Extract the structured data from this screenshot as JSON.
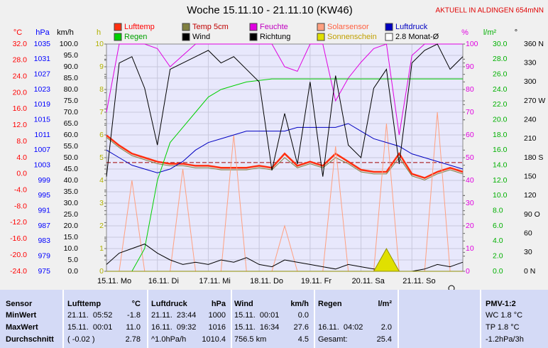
{
  "chart_data": {
    "type": "line",
    "title": "Woche 15.11.10 - 21.11.10 (KW46)",
    "subtitle": "AKTUELL IN ALDINGEN 654mNN",
    "xlim": [
      0,
      7
    ],
    "xticks": [
      {
        "value": 0,
        "label": "15.11. Mo"
      },
      {
        "value": 1,
        "label": "16.11. Di"
      },
      {
        "value": 2,
        "label": "17.11. Mi"
      },
      {
        "value": 3,
        "label": "18.11. Do"
      },
      {
        "value": 4,
        "label": "19.11. Fr"
      },
      {
        "value": 5,
        "label": "20.11. Sa"
      },
      {
        "value": 6,
        "label": "21.11. So"
      }
    ],
    "grid": true,
    "axes": [
      {
        "label": "°C",
        "color": "#ff0000",
        "lim": [
          -24,
          32
        ],
        "ticks": [
          {
            "value": 32,
            "label": "32.0"
          },
          {
            "value": 28,
            "label": "28.0"
          },
          {
            "value": 24,
            "label": "24.0"
          },
          {
            "value": 20,
            "label": "20.0"
          },
          {
            "value": 16,
            "label": "16.0"
          },
          {
            "value": 12,
            "label": "12.0"
          },
          {
            "value": 8,
            "label": "8.0"
          },
          {
            "value": 4,
            "label": "4.0"
          },
          {
            "value": 0,
            "label": "0.0"
          },
          {
            "value": -4,
            "label": "-4.0"
          },
          {
            "value": -8,
            "label": "-8.0"
          },
          {
            "value": -12,
            "label": "-12.0"
          },
          {
            "value": -16,
            "label": "-16.0"
          },
          {
            "value": -20,
            "label": "-20.0"
          },
          {
            "value": -24,
            "label": "-24.0"
          }
        ]
      },
      {
        "label": "hPa",
        "color": "#0000ff",
        "lim": [
          975,
          1035
        ],
        "ticks": [
          1035,
          1031,
          1027,
          1023,
          1019,
          1015,
          1011,
          1007,
          1003,
          999,
          995,
          991,
          987,
          983,
          979,
          975
        ]
      },
      {
        "label": "km/h",
        "color": "#000000",
        "lim": [
          0,
          100
        ],
        "ticks": [
          {
            "value": 100,
            "label": "100.0"
          },
          {
            "value": 95,
            "label": "95.0"
          },
          {
            "value": 90,
            "label": "90.0"
          },
          {
            "value": 85,
            "label": "85.0"
          },
          {
            "value": 80,
            "label": "80.0"
          },
          {
            "value": 75,
            "label": "75.0"
          },
          {
            "value": 70,
            "label": "70.0"
          },
          {
            "value": 65,
            "label": "65.0"
          },
          {
            "value": 60,
            "label": "60.0"
          },
          {
            "value": 55,
            "label": "55.0"
          },
          {
            "value": 50,
            "label": "50.0"
          },
          {
            "value": 45,
            "label": "45.0"
          },
          {
            "value": 40,
            "label": "40.0"
          },
          {
            "value": 35,
            "label": "35.0"
          },
          {
            "value": 30,
            "label": "30.0"
          },
          {
            "value": 25,
            "label": "25.0"
          },
          {
            "value": 20,
            "label": "20.0"
          },
          {
            "value": 15,
            "label": "15.0"
          },
          {
            "value": 10,
            "label": "10.0"
          },
          {
            "value": 5,
            "label": "5.0"
          },
          {
            "value": 0,
            "label": "0.0"
          }
        ]
      },
      {
        "label": "h",
        "color": "#b0b000",
        "lim": [
          0,
          10
        ],
        "ticks": [
          10,
          9,
          8,
          7,
          6,
          5,
          4,
          3,
          2,
          1,
          0
        ]
      },
      {
        "label": "%",
        "color": "#e000e0",
        "lim": [
          0,
          100
        ],
        "ticks": [
          100,
          90,
          80,
          70,
          60,
          50,
          40,
          30,
          20,
          10,
          0
        ]
      },
      {
        "label": "l/m²",
        "color": "#00b000",
        "lim": [
          0,
          30
        ],
        "ticks": [
          {
            "value": 30,
            "label": "30.0"
          },
          {
            "value": 28,
            "label": "28.0"
          },
          {
            "value": 26,
            "label": "26.0"
          },
          {
            "value": 24,
            "label": "24.0"
          },
          {
            "value": 22,
            "label": "22.0"
          },
          {
            "value": 20,
            "label": "20.0"
          },
          {
            "value": 18,
            "label": "18.0"
          },
          {
            "value": 16,
            "label": "16.0"
          },
          {
            "value": 14,
            "label": "14.0"
          },
          {
            "value": 12,
            "label": "12.0"
          },
          {
            "value": 10,
            "label": "10.0"
          },
          {
            "value": 8,
            "label": "8.0"
          },
          {
            "value": 6,
            "label": "6.0"
          },
          {
            "value": 4,
            "label": "4.0"
          },
          {
            "value": 2,
            "label": "2.0"
          },
          {
            "value": 0,
            "label": "0.0"
          }
        ]
      },
      {
        "label": "°",
        "color": "#000000",
        "lim": [
          0,
          360
        ],
        "ticks": [
          {
            "value": 360,
            "label": "360 N"
          },
          330,
          300,
          {
            "value": 270,
            "label": "270 W"
          },
          240,
          210,
          {
            "value": 180,
            "label": "180 S"
          },
          150,
          120,
          {
            "value": 90,
            "label": "90 O"
          },
          60,
          30,
          {
            "value": 0,
            "label": "0 N"
          }
        ]
      }
    ],
    "x": [
      0,
      0.25,
      0.5,
      0.75,
      1,
      1.25,
      1.5,
      1.75,
      2,
      2.25,
      2.5,
      2.75,
      3,
      3.25,
      3.5,
      3.75,
      4,
      4.25,
      4.5,
      4.75,
      5,
      5.25,
      5.5,
      5.75,
      6,
      6.25,
      6.5,
      6.75,
      7
    ],
    "series": [
      {
        "name": "Lufttemp",
        "color": "#ff3010",
        "axis": 0,
        "values": [
          9.5,
          7,
          5,
          4,
          3,
          2.5,
          2.5,
          2,
          2,
          1.5,
          1.5,
          1.5,
          2,
          1.5,
          5,
          2,
          3,
          2,
          5,
          3,
          1,
          0.5,
          0.5,
          5,
          0,
          -1,
          0.5,
          1.5,
          0.5
        ]
      },
      {
        "name": "Temp 5cm",
        "color": "#808040",
        "axis": 0,
        "values": [
          9,
          6.5,
          4.5,
          3.5,
          2.5,
          2,
          2,
          1.5,
          1.5,
          1,
          1,
          1,
          1.5,
          1,
          4,
          1.5,
          2.5,
          1.5,
          4,
          2.5,
          0.5,
          0,
          0,
          4,
          -0.5,
          -1.5,
          0,
          1,
          0
        ]
      },
      {
        "name": "Feuchte",
        "color": "#e000e0",
        "axis": 4,
        "values": [
          70,
          100,
          100,
          100,
          98,
          90,
          95,
          100,
          100,
          100,
          100,
          100,
          100,
          100,
          90,
          88,
          100,
          100,
          75,
          85,
          92,
          98,
          100,
          60,
          95,
          100,
          100,
          100,
          100
        ]
      },
      {
        "name": "Solarsensor",
        "color": "#ffa080",
        "axis": 4,
        "values": [
          0,
          0,
          40,
          0,
          0,
          0,
          45,
          0,
          0,
          0,
          60,
          0,
          0,
          0,
          20,
          0,
          0,
          0,
          55,
          0,
          0,
          0,
          65,
          0,
          0,
          0,
          70,
          0,
          0
        ]
      },
      {
        "name": "Luftdruck",
        "color": "#0000c0",
        "axis": 1,
        "values": [
          1007,
          1005,
          1003,
          1002,
          1001,
          1002,
          1004,
          1007,
          1009,
          1010,
          1011,
          1012,
          1012,
          1012,
          1012,
          1013,
          1013,
          1013,
          1013,
          1014,
          1012,
          1010,
          1009,
          1008,
          1006,
          1005,
          1004,
          1003,
          1002
        ]
      },
      {
        "name": "Regen",
        "color": "#00d000",
        "axis": 5,
        "values": [
          0,
          0,
          0,
          3,
          12,
          17,
          19,
          21,
          23,
          24,
          24.5,
          25,
          25.2,
          25.4,
          25.4,
          25.4,
          25.4,
          25.4,
          25.4,
          25.4,
          25.4,
          25.4,
          25.4,
          25.4,
          25.4,
          25.4,
          25.4,
          25.4,
          25.4
        ]
      },
      {
        "name": "Wind",
        "color": "#000000",
        "axis": 2,
        "values": [
          3,
          8,
          10,
          12,
          8,
          5,
          3,
          4,
          3,
          5,
          4,
          6,
          3,
          2,
          5,
          4,
          3,
          2,
          1,
          3,
          2,
          1,
          1,
          0,
          0,
          1,
          3,
          2,
          4
        ]
      },
      {
        "name": "Richtung",
        "color": "#000000",
        "axis": 6,
        "values": [
          150,
          330,
          340,
          290,
          200,
          320,
          330,
          340,
          350,
          330,
          340,
          320,
          300,
          160,
          250,
          170,
          300,
          150,
          310,
          200,
          180,
          290,
          320,
          170,
          330,
          350,
          360,
          320,
          340
        ]
      },
      {
        "name": "Sonnenschein",
        "color": "#e0e000",
        "axis": 3,
        "values": [
          0,
          0,
          0,
          0,
          0,
          0,
          0,
          0,
          0,
          0,
          0,
          0,
          0,
          0,
          0,
          0,
          0,
          0,
          0,
          0,
          0,
          0,
          1.0,
          0,
          0,
          0,
          0,
          0,
          0
        ]
      }
    ],
    "reference": {
      "name": "2.8 Monat-Ø",
      "value": 2.8,
      "axis": 0,
      "color": "#a00000"
    }
  },
  "table": {
    "header": [
      "Sensor",
      "Lufttemp",
      "°C",
      "Luftdruck",
      "hPa",
      "Wind",
      "km/h",
      "Regen",
      "l/m²",
      "PMV-1:2"
    ],
    "rows": [
      [
        "MinWert",
        "21.11.  05:52",
        "-1.8",
        "21.11.  23:44",
        "1000",
        "15.11.  00:01",
        "0.0",
        null,
        null,
        "WC 1.8 °C"
      ],
      [
        "MaxWert",
        "15.11.  00:01",
        "11.0",
        "16.11.  09:32",
        "1016",
        "15.11.  16:34",
        "27.6",
        "16.11.  04:02",
        "2.0",
        "TP 1.8 °C"
      ],
      [
        "Durchschnitt",
        "( -0.02 )",
        "2.78",
        "^1.0hPa/h",
        "1010.4",
        "756.5 km",
        "4.5",
        "Gesamt:",
        "25.4",
        "-1.2hPa/3h"
      ]
    ]
  }
}
